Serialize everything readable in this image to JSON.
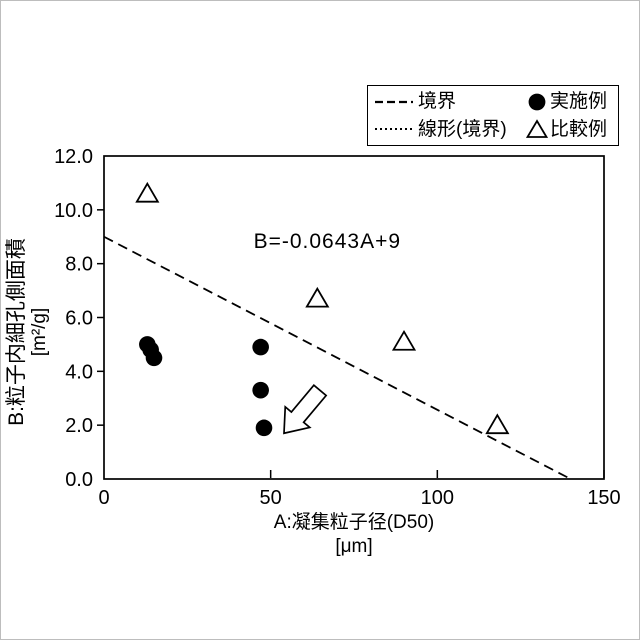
{
  "figure": {
    "background": "#ffffff",
    "ink_color": "#000000",
    "legend": {
      "items": [
        {
          "sample": "dashed-line",
          "label": "境界"
        },
        {
          "sample": "dotted-line",
          "label": "線形(境界)"
        },
        {
          "sample": "filled-circle",
          "label": "実施例"
        },
        {
          "sample": "open-triangle",
          "label": "比較例"
        }
      ]
    },
    "x_axis": {
      "title": "A:凝集粒子径(D50)",
      "unit": "[μm]",
      "ticks": [
        {
          "value": 0,
          "label": "0"
        },
        {
          "value": 50,
          "label": "50"
        },
        {
          "value": 100,
          "label": "100"
        },
        {
          "value": 150,
          "label": "150"
        }
      ]
    },
    "y_axis": {
      "title": "B:粒子内細孔側面積",
      "unit": "[m²/g]",
      "ticks": [
        {
          "value": 0,
          "label": "0.0"
        },
        {
          "value": 2,
          "label": "2.0"
        },
        {
          "value": 4,
          "label": "4.0"
        },
        {
          "value": 6,
          "label": "6.0"
        },
        {
          "value": 8,
          "label": "8.0"
        },
        {
          "value": 10,
          "label": "10.0"
        },
        {
          "value": 12,
          "label": "12.0"
        }
      ]
    }
  },
  "chart_data": {
    "type": "scatter",
    "title": "",
    "xlabel": "A:凝集粒子径(D50) [μm]",
    "ylabel": "B:粒子内細孔側面積 [m²/g]",
    "xlim": [
      0,
      150
    ],
    "ylim": [
      0,
      12
    ],
    "grid": false,
    "legend_position": "top-right",
    "series": [
      {
        "name": "実施例",
        "marker": "filled-circle",
        "color": "#000000",
        "points": [
          [
            13,
            5.0
          ],
          [
            14,
            4.8
          ],
          [
            15,
            4.5
          ],
          [
            47,
            4.9
          ],
          [
            47,
            3.3
          ],
          [
            48,
            1.9
          ]
        ]
      },
      {
        "name": "比較例",
        "marker": "open-triangle",
        "color": "#000000",
        "points": [
          [
            13,
            10.6
          ],
          [
            64,
            6.7
          ],
          [
            90,
            5.1
          ],
          [
            118,
            2.0
          ]
        ]
      }
    ],
    "boundary_line": {
      "name": "境界",
      "style": "dashed",
      "equation": "B=-0.0643A+9",
      "from": [
        0,
        9
      ],
      "to": [
        140,
        0
      ]
    },
    "annotation": {
      "text": "B=-0.0643A+9",
      "x": 67,
      "y": 8.8
    },
    "arrow": {
      "tip_x": 54,
      "tip_y": 1.7,
      "rotation_deg": -50
    }
  }
}
